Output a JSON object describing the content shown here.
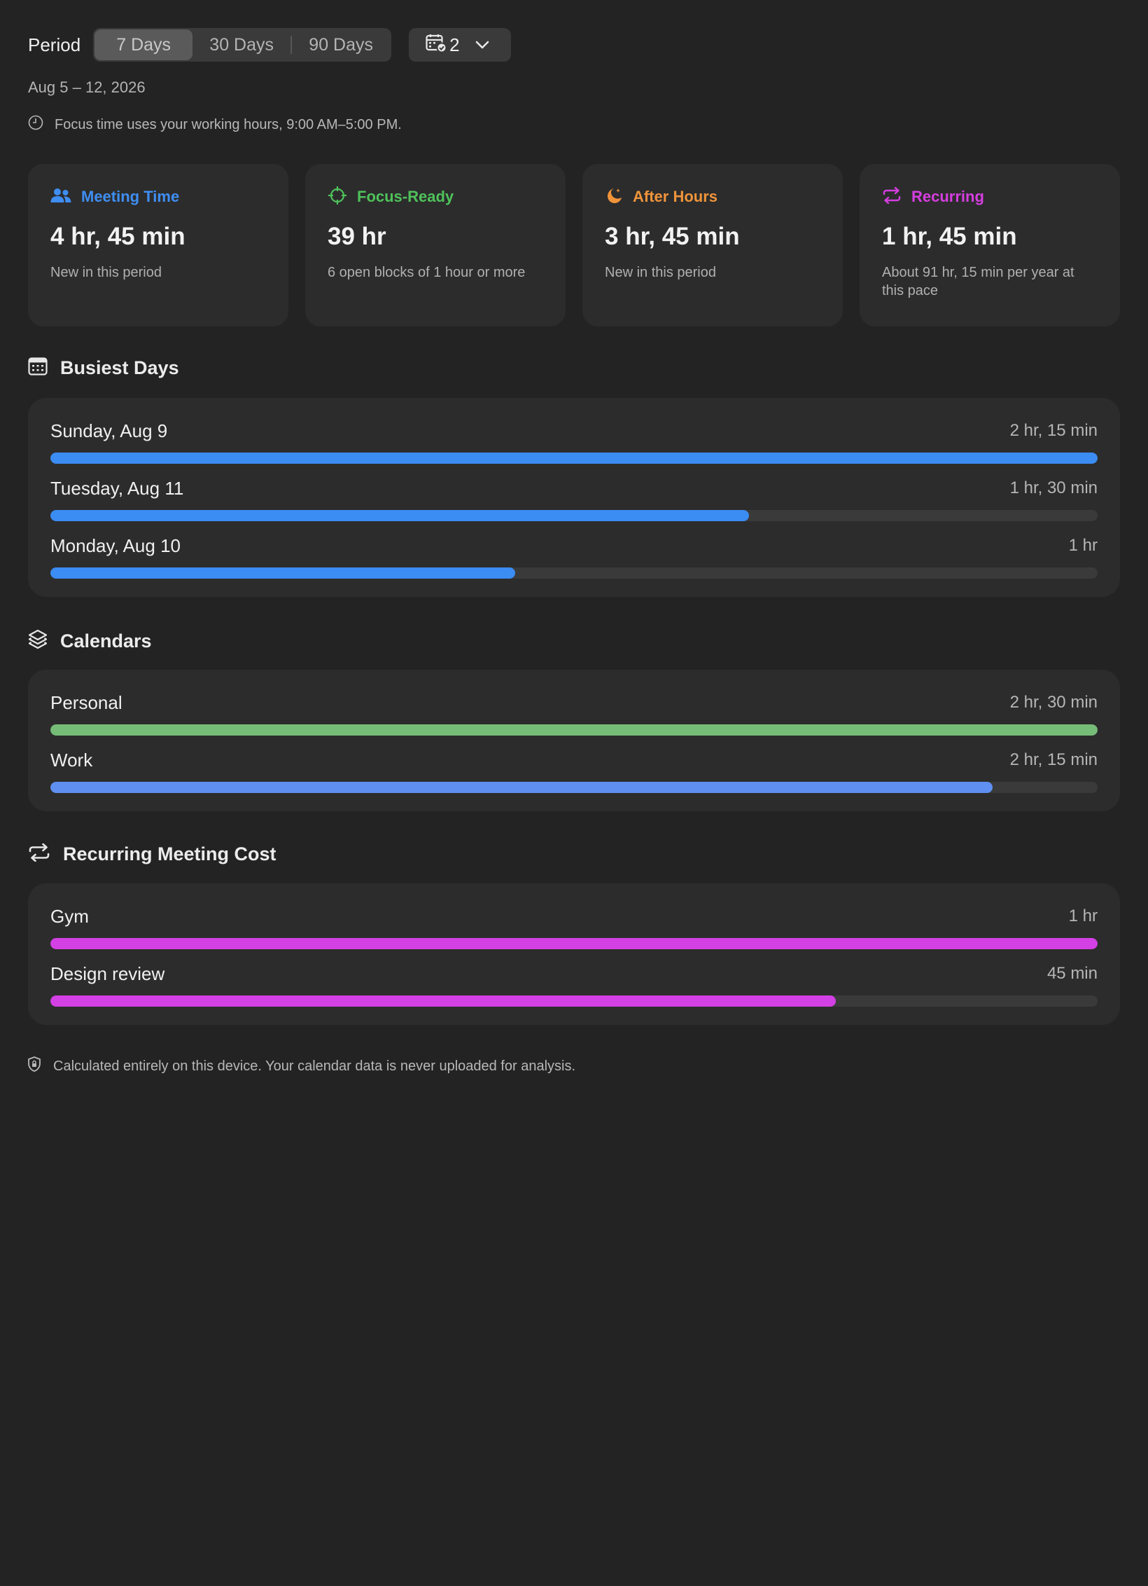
{
  "header": {
    "period_label": "Period",
    "tabs": [
      "7 Days",
      "30 Days",
      "90 Days"
    ],
    "active_tab": 0,
    "calendar_count": "2",
    "date_range": "Aug 5 – 12, 2026",
    "focus_note": "Focus time uses your working hours, 9:00 AM–5:00 PM."
  },
  "cards": [
    {
      "title": "Meeting Time",
      "icon": "people-icon",
      "color": "#3f8ef2",
      "value": "4 hr, 45 min",
      "sub": "New in this period"
    },
    {
      "title": "Focus-Ready",
      "icon": "target-icon",
      "color": "#4fc25b",
      "value": "39 hr",
      "sub": "6 open blocks of 1 hour or more"
    },
    {
      "title": "After Hours",
      "icon": "moon-icon",
      "color": "#f0943a",
      "value": "3 hr, 45 min",
      "sub": "New in this period"
    },
    {
      "title": "Recurring",
      "icon": "repeat-icon",
      "color": "#d63ee0",
      "value": "1 hr, 45 min",
      "sub": "About 91 hr, 15 min per year at this pace"
    }
  ],
  "busiest": {
    "title": "Busiest Days",
    "icon": "calendar-grid-icon",
    "color": "#3b8cf3",
    "rows": [
      {
        "name": "Sunday, Aug 9",
        "value": "2 hr, 15 min",
        "fraction": 1.0
      },
      {
        "name": "Tuesday, Aug 11",
        "value": "1 hr, 30 min",
        "fraction": 0.667
      },
      {
        "name": "Monday, Aug 10",
        "value": "1 hr",
        "fraction": 0.444
      }
    ]
  },
  "calendars": {
    "title": "Calendars",
    "icon": "layers-icon",
    "rows": [
      {
        "name": "Personal",
        "value": "2 hr, 30 min",
        "fraction": 1.0,
        "color": "#76bd78"
      },
      {
        "name": "Work",
        "value": "2 hr, 15 min",
        "fraction": 0.9,
        "color": "#5f8ff0"
      }
    ]
  },
  "recurring": {
    "title": "Recurring Meeting Cost",
    "icon": "repeat-icon",
    "color": "#d340e3",
    "rows": [
      {
        "name": "Gym",
        "value": "1 hr",
        "fraction": 1.0
      },
      {
        "name": "Design review",
        "value": "45 min",
        "fraction": 0.75
      }
    ]
  },
  "footer": {
    "icon": "shield-icon",
    "text": "Calculated entirely on this device. Your calendar data is never uploaded for analysis."
  }
}
